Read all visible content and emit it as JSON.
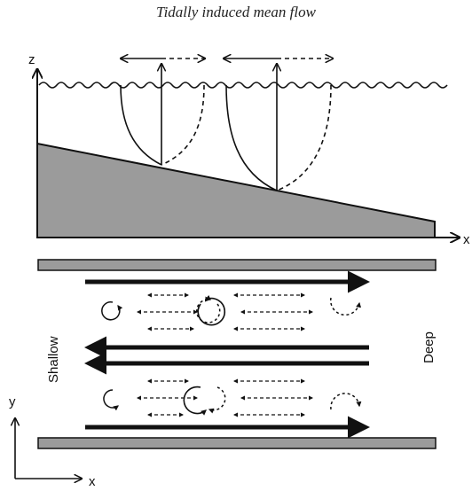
{
  "title": "Tidally induced mean flow",
  "section_view": {
    "z_axis_label": "z",
    "x_axis_label": "x"
  },
  "plan_view": {
    "x_axis_label": "x",
    "y_axis_label": "y",
    "left_label": "Shallow",
    "right_label": "Deep"
  },
  "colors": {
    "seabed": "#9b9b9b",
    "ink": "#111111"
  }
}
